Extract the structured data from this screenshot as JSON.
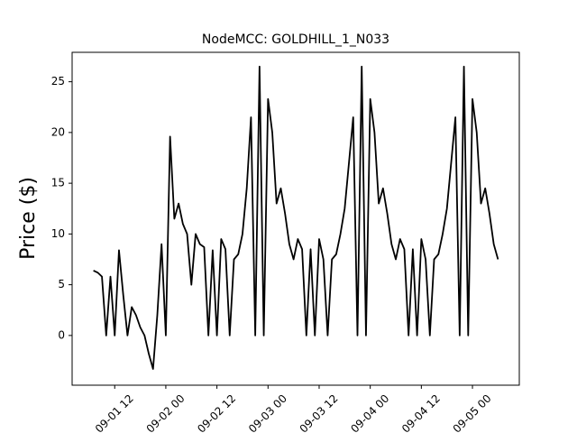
{
  "chart_data": {
    "type": "line",
    "title": "NodeMCC: GOLDHILL_1_N033",
    "y_label": "Price ($)",
    "x": [
      "09-01 07",
      "09-01 08",
      "09-01 09",
      "09-01 10",
      "09-01 11",
      "09-01 12",
      "09-01 13",
      "09-01 14",
      "09-01 15",
      "09-01 16",
      "09-01 17",
      "09-01 18",
      "09-01 19",
      "09-01 20",
      "09-01 21",
      "09-01 22",
      "09-01 23",
      "09-02 00",
      "09-02 01",
      "09-02 02",
      "09-02 03",
      "09-02 04",
      "09-02 05",
      "09-02 06",
      "09-02 07",
      "09-02 08",
      "09-02 09",
      "09-02 10",
      "09-02 11",
      "09-02 12",
      "09-02 13",
      "09-02 14",
      "09-02 15",
      "09-02 16",
      "09-02 17",
      "09-02 18",
      "09-02 19",
      "09-02 20",
      "09-02 21",
      "09-02 22",
      "09-02 23",
      "09-03 00",
      "09-03 01",
      "09-03 02",
      "09-03 03",
      "09-03 04",
      "09-03 05",
      "09-03 06",
      "09-03 07",
      "09-03 08",
      "09-03 09",
      "09-03 10",
      "09-03 11",
      "09-03 12",
      "09-03 13",
      "09-03 14",
      "09-03 15",
      "09-03 16",
      "09-03 17",
      "09-03 18",
      "09-03 19",
      "09-03 20",
      "09-03 21",
      "09-03 22",
      "09-03 23",
      "09-04 00",
      "09-04 01",
      "09-04 02",
      "09-04 03",
      "09-04 04",
      "09-04 05",
      "09-04 06",
      "09-04 07",
      "09-04 08",
      "09-04 09",
      "09-04 10",
      "09-04 11",
      "09-04 12",
      "09-04 13",
      "09-04 14",
      "09-04 15",
      "09-04 16",
      "09-04 17",
      "09-04 18",
      "09-04 19",
      "09-04 20",
      "09-04 21",
      "09-04 22",
      "09-04 23",
      "09-05 00",
      "09-05 01",
      "09-05 02",
      "09-05 03",
      "09-05 04",
      "09-05 05",
      "09-05 06"
    ],
    "series": [
      {
        "color": "#000000",
        "values": [
          6.4,
          6.2,
          5.8,
          0,
          5.8,
          0,
          8.4,
          4,
          0,
          2.8,
          2,
          0.8,
          0,
          -1.8,
          -3.3,
          2,
          9,
          0,
          19.6,
          11.5,
          13,
          11,
          10,
          5,
          10,
          9,
          8.7,
          0,
          8.4,
          0,
          9.5,
          8.5,
          0,
          7.5,
          8,
          10,
          14.5,
          21.5,
          0,
          26.5,
          0,
          23.3,
          20,
          13,
          14.5,
          12,
          9,
          7.5,
          9.5,
          8.5,
          0,
          8.5,
          0,
          9.5,
          7.5,
          0,
          7.5,
          8,
          10,
          12.5,
          17,
          21.5,
          0,
          26.5,
          0,
          23.3,
          20,
          13,
          14.5,
          12,
          9,
          7.5,
          9.5,
          8.5,
          0,
          8.5,
          0,
          9.5,
          7.5,
          0,
          7.5,
          8,
          10,
          12.5,
          17,
          21.5,
          0,
          26.5,
          0,
          23.3,
          20,
          13,
          14.5,
          12,
          9,
          7.5
        ]
      }
    ],
    "xlim": [
      "09-01 02",
      "09-05 11"
    ],
    "xticks": [
      "09-01 12",
      "09-02 00",
      "09-02 12",
      "09-03 00",
      "09-03 12",
      "09-04 00",
      "09-04 12",
      "09-05 00"
    ],
    "ylim": [
      -4.9,
      27.9
    ],
    "yticks": [
      0,
      5,
      10,
      15,
      20,
      25
    ],
    "grid": false
  }
}
